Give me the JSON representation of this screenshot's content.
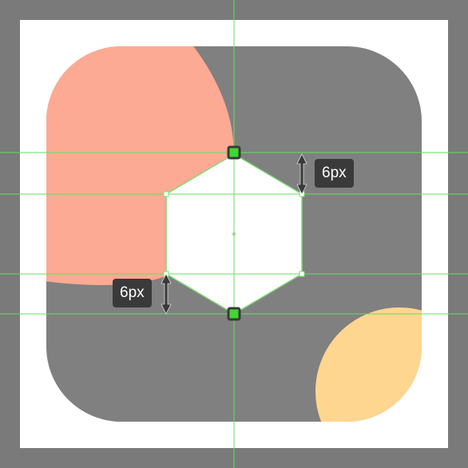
{
  "colors": {
    "workspace": "#7a7a7a",
    "artboard": "#ffffff",
    "icon_base": "#808080",
    "salmon_shape": "#fdaa94",
    "yellow_shape": "#ffd68f",
    "hexagon_fill": "#ffffff",
    "guide_line": "#63e05c",
    "selection_outline": "#7edc74",
    "anchor_fill": "#3ed82f",
    "anchor_border": "#3a3a3a",
    "label_background": "#3a3a3a",
    "label_text": "#ffffff",
    "arrow": "#3a3a3a"
  },
  "measurements": {
    "top_gap": "6px",
    "bottom_gap": "6px"
  },
  "icons": {
    "top_arrow": "double-arrow-vertical-icon",
    "bottom_arrow": "double-arrow-vertical-icon"
  }
}
